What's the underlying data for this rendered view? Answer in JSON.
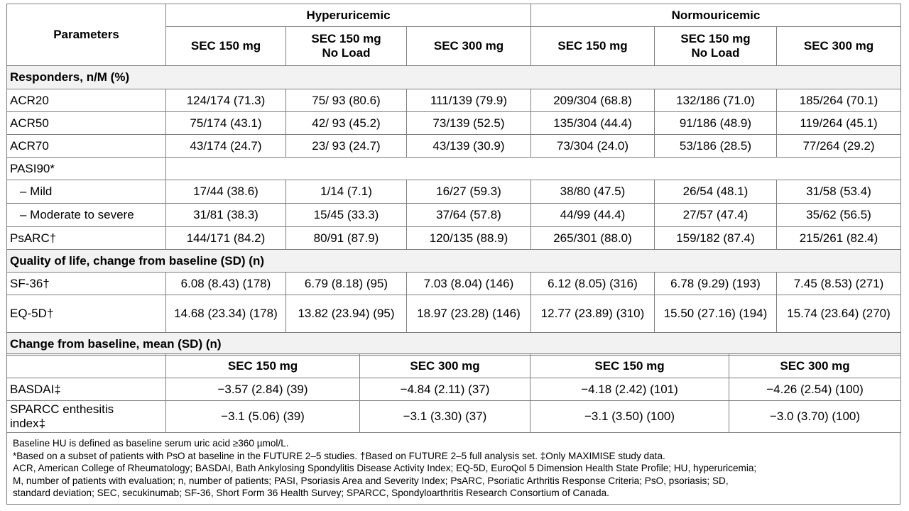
{
  "header": {
    "parameters": "Parameters",
    "group1": "Hyperuricemic",
    "group2": "Normouricemic",
    "sub_cols": [
      "SEC 150 mg",
      "SEC 150 mg\nNo Load",
      "SEC 300 mg",
      "SEC 150 mg",
      "SEC 150 mg\nNo Load",
      "SEC 300 mg"
    ]
  },
  "section_responders": "Responders, n/M (%)",
  "rows_responders": [
    {
      "label": "ACR20",
      "values": [
        "124/174 (71.3)",
        "75/ 93 (80.6)",
        "111/139 (79.9)",
        "209/304 (68.8)",
        "132/186 (71.0)",
        "185/264 (70.1)"
      ]
    },
    {
      "label": "ACR50",
      "values": [
        "75/174 (43.1)",
        "42/ 93 (45.2)",
        "73/139 (52.5)",
        "135/304 (44.4)",
        "91/186 (48.9)",
        "119/264 (45.1)"
      ]
    },
    {
      "label": "ACR70",
      "values": [
        "43/174 (24.7)",
        "23/ 93 (24.7)",
        "43/139 (30.9)",
        "73/304 (24.0)",
        "53/186 (28.5)",
        "77/264 (29.2)"
      ]
    }
  ],
  "pasi_label": "PASI90*",
  "rows_pasi": [
    {
      "label": "– Mild",
      "values": [
        "17/44 (38.6)",
        "1/14 (7.1)",
        "16/27 (59.3)",
        "38/80 (47.5)",
        "26/54 (48.1)",
        "31/58 (53.4)"
      ]
    },
    {
      "label": "– Moderate to severe",
      "values": [
        "31/81 (38.3)",
        "15/45 (33.3)",
        "37/64 (57.8)",
        "44/99 (44.4)",
        "27/57 (47.4)",
        "35/62 (56.5)"
      ]
    }
  ],
  "row_psarc": {
    "label": "PsARC†",
    "values": [
      "144/171 (84.2)",
      "80/91 (87.9)",
      "120/135 (88.9)",
      "265/301 (88.0)",
      "159/182 (87.4)",
      "215/261 (82.4)"
    ]
  },
  "section_qol": "Quality of life, change from baseline (SD) (n)",
  "rows_qol": [
    {
      "label": "SF-36†",
      "values": [
        "6.08 (8.43) (178)",
        "6.79 (8.18) (95)",
        "7.03 (8.04) (146)",
        "6.12 (8.05) (316)",
        "6.78 (9.29) (193)",
        "7.45 (8.53) (271)"
      ]
    },
    {
      "label": "EQ-5D†",
      "values": [
        "14.68 (23.34) (178)",
        "13.82 (23.94) (95)",
        "18.97 (23.28) (146)",
        "12.77 (23.89) (310)",
        "15.50 (27.16) (194)",
        "15.74 (23.64) (270)"
      ]
    }
  ],
  "section_change": "Change from baseline, mean (SD) (n)",
  "change_cols": [
    "SEC 150 mg",
    "SEC 300 mg",
    "SEC 150 mg",
    "SEC 300 mg"
  ],
  "rows_change": [
    {
      "label": "BASDAI‡",
      "values": [
        "−3.57 (2.84) (39)",
        "−4.84 (2.11) (37)",
        "−4.18 (2.42) (101)",
        "−4.26 (2.54) (100)"
      ]
    },
    {
      "label": "SPARCC enthesitis\nindex‡",
      "values": [
        "−3.1 (5.06) (39)",
        "−3.1 (3.30) (37)",
        "−3.1 (3.50) (100)",
        "−3.0 (3.70) (100)"
      ]
    }
  ],
  "footnotes": [
    "Baseline HU is defined as baseline serum uric acid ≥360 µmol/L.",
    "*Based on a subset of patients with PsO at baseline in the FUTURE 2–5 studies. †Based on FUTURE 2–5 full analysis set. ‡Only MAXIMISE study data.",
    "ACR, American College of Rheumatology;  BASDAI, Bath Ankylosing Spondylitis Disease Activity Index;  EQ-5D, EuroQol 5 Dimension Health State Profile;  HU, hyperuricemia;",
    "M, number of patients with evaluation;  n, number of patients;  PASI, Psoriasis Area and Severity Index;  PsARC, Psoriatic Arthritis Response Criteria;  PsO, psoriasis;  SD,",
    "standard deviation;  SEC, secukinumab;  SF-36, Short Form 36 Health Survey;  SPARCC, Spondyloarthritis  Research Consortium of Canada."
  ]
}
